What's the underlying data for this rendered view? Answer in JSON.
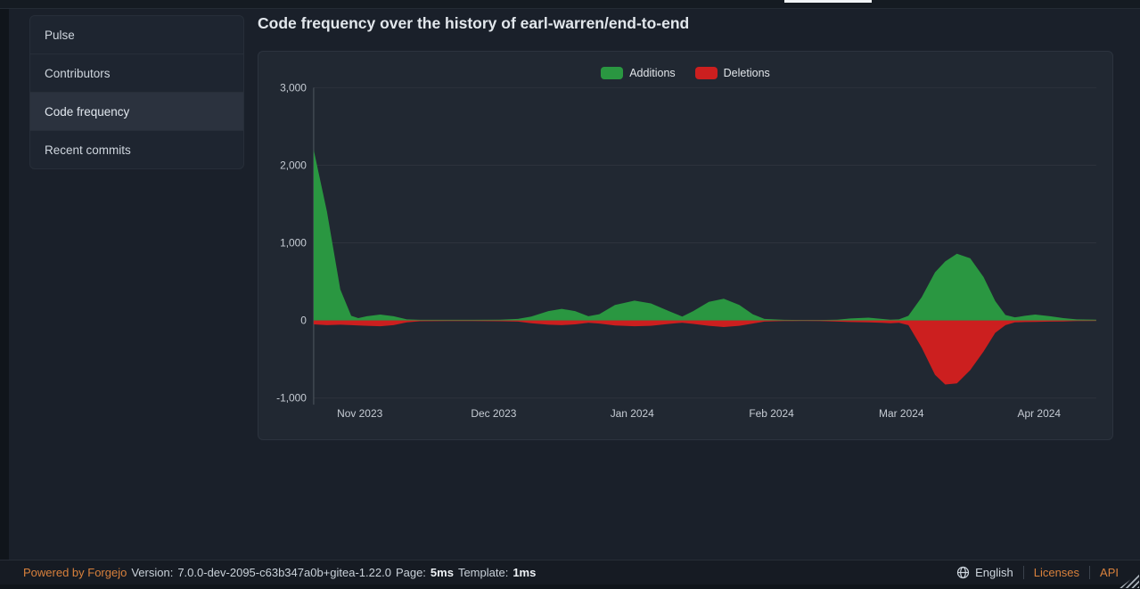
{
  "sidebar": {
    "items": [
      {
        "label": "Pulse",
        "active": false
      },
      {
        "label": "Contributors",
        "active": false
      },
      {
        "label": "Code frequency",
        "active": true
      },
      {
        "label": "Recent commits",
        "active": false
      }
    ]
  },
  "main": {
    "title": "Code frequency over the history of earl-warren/end-to-end"
  },
  "chart_data": {
    "type": "area",
    "title": "Code frequency over the history of earl-warren/end-to-end",
    "legend_position": "top-center",
    "grid": true,
    "ylim": [
      -1000,
      3000
    ],
    "y_ticks": [
      {
        "label": "3,000",
        "value": 3000
      },
      {
        "label": "2,000",
        "value": 2000
      },
      {
        "label": "1,000",
        "value": 1000
      },
      {
        "label": "0",
        "value": 0
      },
      {
        "label": "-1,000",
        "value": -1000
      }
    ],
    "x_labels": [
      {
        "label": "Nov 2023",
        "pos": 0.059
      },
      {
        "label": "Dec 2023",
        "pos": 0.23
      },
      {
        "label": "Jan 2024",
        "pos": 0.407
      },
      {
        "label": "Feb 2024",
        "pos": 0.585
      },
      {
        "label": "Mar 2024",
        "pos": 0.751
      },
      {
        "label": "Apr 2024",
        "pos": 0.927
      }
    ],
    "series": [
      {
        "name": "Additions",
        "color": "#2a9741"
      },
      {
        "name": "Deletions",
        "color": "#cc1f1f"
      }
    ],
    "points_format": "[x position 0-1 across plot, additions, deletions]",
    "points": [
      [
        0.0,
        2200,
        -50
      ],
      [
        0.017,
        1400,
        -60
      ],
      [
        0.034,
        400,
        -55
      ],
      [
        0.048,
        60,
        -60
      ],
      [
        0.057,
        30,
        -65
      ],
      [
        0.068,
        55,
        -70
      ],
      [
        0.085,
        75,
        -75
      ],
      [
        0.102,
        55,
        -60
      ],
      [
        0.119,
        15,
        -25
      ],
      [
        0.136,
        8,
        -10
      ],
      [
        0.17,
        8,
        -8
      ],
      [
        0.204,
        8,
        -8
      ],
      [
        0.238,
        10,
        -10
      ],
      [
        0.261,
        20,
        -15
      ],
      [
        0.278,
        50,
        -35
      ],
      [
        0.3,
        120,
        -55
      ],
      [
        0.317,
        150,
        -60
      ],
      [
        0.334,
        120,
        -50
      ],
      [
        0.351,
        55,
        -30
      ],
      [
        0.365,
        80,
        -40
      ],
      [
        0.385,
        200,
        -65
      ],
      [
        0.41,
        255,
        -75
      ],
      [
        0.431,
        220,
        -70
      ],
      [
        0.454,
        120,
        -45
      ],
      [
        0.471,
        50,
        -30
      ],
      [
        0.485,
        120,
        -45
      ],
      [
        0.505,
        240,
        -70
      ],
      [
        0.524,
        280,
        -85
      ],
      [
        0.544,
        200,
        -70
      ],
      [
        0.561,
        80,
        -40
      ],
      [
        0.576,
        20,
        -15
      ],
      [
        0.601,
        8,
        -8
      ],
      [
        0.624,
        6,
        -6
      ],
      [
        0.646,
        6,
        -8
      ],
      [
        0.669,
        10,
        -15
      ],
      [
        0.686,
        25,
        -20
      ],
      [
        0.709,
        35,
        -25
      ],
      [
        0.726,
        20,
        -30
      ],
      [
        0.737,
        10,
        -35
      ],
      [
        0.748,
        15,
        -30
      ],
      [
        0.76,
        60,
        -60
      ],
      [
        0.777,
        300,
        -350
      ],
      [
        0.794,
        620,
        -700
      ],
      [
        0.807,
        760,
        -825
      ],
      [
        0.822,
        860,
        -810
      ],
      [
        0.839,
        800,
        -640
      ],
      [
        0.856,
        560,
        -400
      ],
      [
        0.871,
        250,
        -160
      ],
      [
        0.884,
        70,
        -60
      ],
      [
        0.896,
        40,
        -25
      ],
      [
        0.909,
        60,
        -20
      ],
      [
        0.922,
        75,
        -18
      ],
      [
        0.941,
        55,
        -15
      ],
      [
        0.958,
        30,
        -12
      ],
      [
        0.975,
        15,
        -8
      ],
      [
        1.0,
        10,
        -6
      ]
    ]
  },
  "footer": {
    "powered_by": "Powered by Forgejo",
    "version_label": "Version:",
    "version": "7.0.0-dev-2095-c63b347a0b+gitea-1.22.0",
    "page_label": "Page:",
    "page_time": "5ms",
    "template_label": "Template:",
    "template_time": "1ms",
    "language": "English",
    "links": [
      "Licenses",
      "API"
    ]
  },
  "colors": {
    "additions_green": "#2a9741",
    "deletions_red": "#cc1f1f",
    "link_orange": "#d9813c",
    "active_tab_underline": "#f2f5f7"
  }
}
